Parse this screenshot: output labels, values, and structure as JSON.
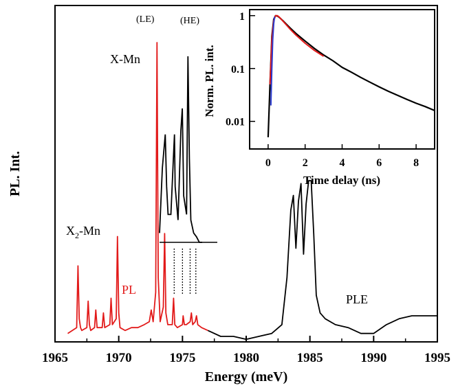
{
  "chart_data": [
    {
      "type": "line",
      "xlabel": "Energy (meV)",
      "ylabel": "PL. Int.",
      "xlim": [
        1965,
        1995
      ],
      "x_ticks": [
        "1965",
        "1970",
        "1975",
        "1980",
        "1985",
        "1990",
        "1995"
      ],
      "annotations": {
        "x_mn": "X-Mn",
        "x2_mn": "X",
        "x2_sub": "2",
        "x2_suffix": "-Mn",
        "le": "(LE)",
        "he": "(HE)",
        "pl": "PL",
        "ple": "PLE"
      },
      "colors": {
        "pl": "#e21a1a",
        "ple": "#000000"
      },
      "series": [
        {
          "name": "PL",
          "color": "#e21a1a",
          "x": [
            1966.0,
            1966.7,
            1966.8,
            1966.9,
            1967.0,
            1967.1,
            1967.5,
            1967.6,
            1967.7,
            1967.8,
            1968.1,
            1968.2,
            1968.3,
            1968.7,
            1968.8,
            1968.9,
            1969.3,
            1969.4,
            1969.5,
            1969.8,
            1969.9,
            1970.0,
            1970.1,
            1970.5,
            1971.0,
            1971.5,
            1972.0,
            1972.4,
            1972.55,
            1972.7,
            1972.9,
            1973.0,
            1973.1,
            1973.25,
            1973.5,
            1973.6,
            1973.7,
            1973.85,
            1974.2,
            1974.3,
            1974.4,
            1974.6,
            1975.0,
            1975.05,
            1975.15,
            1975.3,
            1975.6,
            1975.7,
            1975.8,
            1976.0,
            1976.1,
            1976.2,
            1976.5,
            1977.0
          ],
          "y": [
            0.01,
            0.03,
            0.24,
            0.06,
            0.03,
            0.02,
            0.03,
            0.12,
            0.04,
            0.02,
            0.03,
            0.09,
            0.03,
            0.03,
            0.08,
            0.03,
            0.04,
            0.13,
            0.04,
            0.06,
            0.34,
            0.08,
            0.03,
            0.02,
            0.03,
            0.03,
            0.04,
            0.05,
            0.09,
            0.05,
            0.15,
            1.0,
            0.2,
            0.05,
            0.1,
            0.35,
            0.08,
            0.04,
            0.04,
            0.13,
            0.04,
            0.03,
            0.04,
            0.07,
            0.04,
            0.04,
            0.05,
            0.08,
            0.04,
            0.05,
            0.07,
            0.04,
            0.03,
            0.02
          ]
        },
        {
          "name": "PLE",
          "color": "#000000",
          "x": [
            1977.0,
            1978.0,
            1979.0,
            1980.0,
            1981.0,
            1982.0,
            1982.8,
            1983.2,
            1983.5,
            1983.7,
            1983.9,
            1984.1,
            1984.3,
            1984.5,
            1984.7,
            1984.9,
            1985.1,
            1985.3,
            1985.5,
            1985.8,
            1986.2,
            1987.0,
            1988.0,
            1989.0,
            1990.0,
            1991.0,
            1992.0,
            1993.0,
            1994.0,
            1995.0
          ],
          "y": [
            0.02,
            0.0,
            0.0,
            -0.01,
            0.0,
            0.01,
            0.04,
            0.2,
            0.43,
            0.48,
            0.3,
            0.46,
            0.52,
            0.28,
            0.45,
            0.53,
            0.53,
            0.35,
            0.14,
            0.08,
            0.06,
            0.04,
            0.03,
            0.01,
            0.01,
            0.04,
            0.06,
            0.07,
            0.07,
            0.07
          ]
        }
      ],
      "spectrum_inset": {
        "type": "line",
        "x": [
          1974.0,
          1974.2,
          1974.4,
          1974.5,
          1974.6,
          1974.8,
          1975.0,
          1975.05,
          1975.1,
          1975.3,
          1975.5,
          1975.6,
          1975.7,
          1975.9,
          1976.0,
          1976.1,
          1976.2,
          1976.4,
          1976.6,
          1976.8,
          1977.0
        ],
        "y": [
          0.05,
          0.4,
          0.58,
          0.3,
          0.15,
          0.15,
          0.5,
          0.58,
          0.3,
          0.12,
          0.6,
          0.72,
          0.25,
          0.15,
          1.0,
          0.45,
          0.12,
          0.05,
          0.03,
          0.0,
          0.0
        ]
      }
    },
    {
      "type": "line",
      "xlabel": "Time delay (ns)",
      "ylabel": "Norm. PL. int.",
      "xlim": [
        -1,
        9
      ],
      "ylim": [
        0.003,
        1.3
      ],
      "yscale": "log",
      "x_ticks": [
        "0",
        "2",
        "4",
        "6",
        "8"
      ],
      "y_ticks": [
        "1",
        "0.1",
        "0.01"
      ],
      "series": [
        {
          "color": "#000000",
          "x": [
            0.0,
            0.1,
            0.2,
            0.3,
            0.4,
            0.5,
            0.6,
            0.8,
            1.0,
            1.2,
            1.5,
            2.0,
            2.5,
            3.0,
            3.5,
            4.0,
            4.5,
            5.0,
            5.5,
            6.0,
            6.5,
            7.0,
            7.5,
            8.0,
            8.5,
            9.0
          ],
          "y": [
            0.005,
            0.05,
            0.4,
            0.85,
            1.0,
            0.98,
            0.93,
            0.8,
            0.68,
            0.58,
            0.46,
            0.33,
            0.24,
            0.18,
            0.14,
            0.105,
            0.085,
            0.068,
            0.055,
            0.045,
            0.037,
            0.031,
            0.026,
            0.022,
            0.019,
            0.016
          ]
        },
        {
          "color": "#e21a1a",
          "x": [
            0.1,
            0.2,
            0.3,
            0.4,
            0.5,
            0.6,
            0.8,
            1.0,
            1.2,
            1.5,
            2.0,
            2.5,
            3.0
          ],
          "y": [
            0.05,
            0.35,
            0.8,
            1.0,
            1.0,
            0.94,
            0.79,
            0.66,
            0.55,
            0.43,
            0.3,
            0.22,
            0.17
          ]
        },
        {
          "color": "#2a3ad0",
          "x": [
            0.15,
            0.2,
            0.25,
            0.3,
            0.35
          ],
          "y": [
            0.02,
            0.1,
            0.35,
            0.7,
            0.95
          ]
        }
      ]
    }
  ]
}
